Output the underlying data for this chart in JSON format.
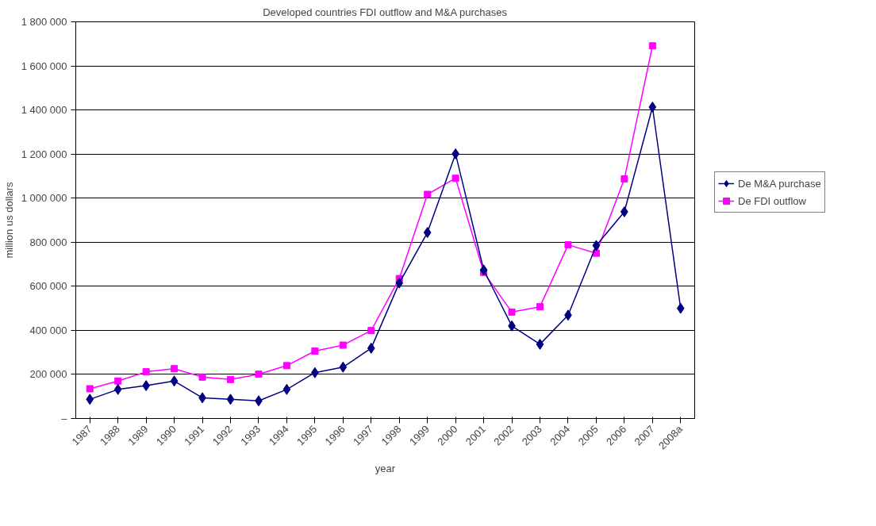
{
  "chart_data": {
    "type": "line",
    "title": "Developed countries FDI outflow and M&A purchases",
    "xlabel": "year",
    "ylabel": "million us dollars",
    "categories": [
      "1987",
      "1988",
      "1989",
      "1990",
      "1991",
      "1992",
      "1993",
      "1994",
      "1995",
      "1996",
      "1997",
      "1998",
      "1999",
      "2000",
      "2001",
      "2002",
      "2003",
      "2004",
      "2005",
      "2006",
      "2007",
      "2008a"
    ],
    "series": [
      {
        "name": "De M&A purchase",
        "color": "#000080",
        "marker": "diamond",
        "values": [
          87000,
          132000,
          149000,
          170000,
          94000,
          87000,
          80000,
          132000,
          208000,
          233000,
          319000,
          615000,
          844000,
          1201000,
          674000,
          420000,
          337000,
          469000,
          785000,
          938000,
          1413000,
          500000
        ]
      },
      {
        "name": "De FDI outflow",
        "color": "#ff00ff",
        "marker": "square",
        "values": [
          135000,
          170000,
          212000,
          226000,
          188000,
          177000,
          201000,
          240000,
          306000,
          333000,
          399000,
          635000,
          1017000,
          1090000,
          663000,
          483000,
          507000,
          788000,
          750000,
          1087000,
          1691000,
          null
        ]
      }
    ],
    "ylim": [
      0,
      1800000
    ],
    "yticks": [
      {
        "value": 0,
        "label": "–"
      },
      {
        "value": 200000,
        "label": "200 000"
      },
      {
        "value": 400000,
        "label": "400 000"
      },
      {
        "value": 600000,
        "label": "600 000"
      },
      {
        "value": 800000,
        "label": "800 000"
      },
      {
        "value": 1000000,
        "label": "1 000 000"
      },
      {
        "value": 1200000,
        "label": "1 200 000"
      },
      {
        "value": 1400000,
        "label": "1 400 000"
      },
      {
        "value": 1600000,
        "label": "1 600 000"
      },
      {
        "value": 1800000,
        "label": "1 800 000"
      }
    ],
    "grid": "y",
    "legend": "right",
    "line_style": "solid"
  }
}
